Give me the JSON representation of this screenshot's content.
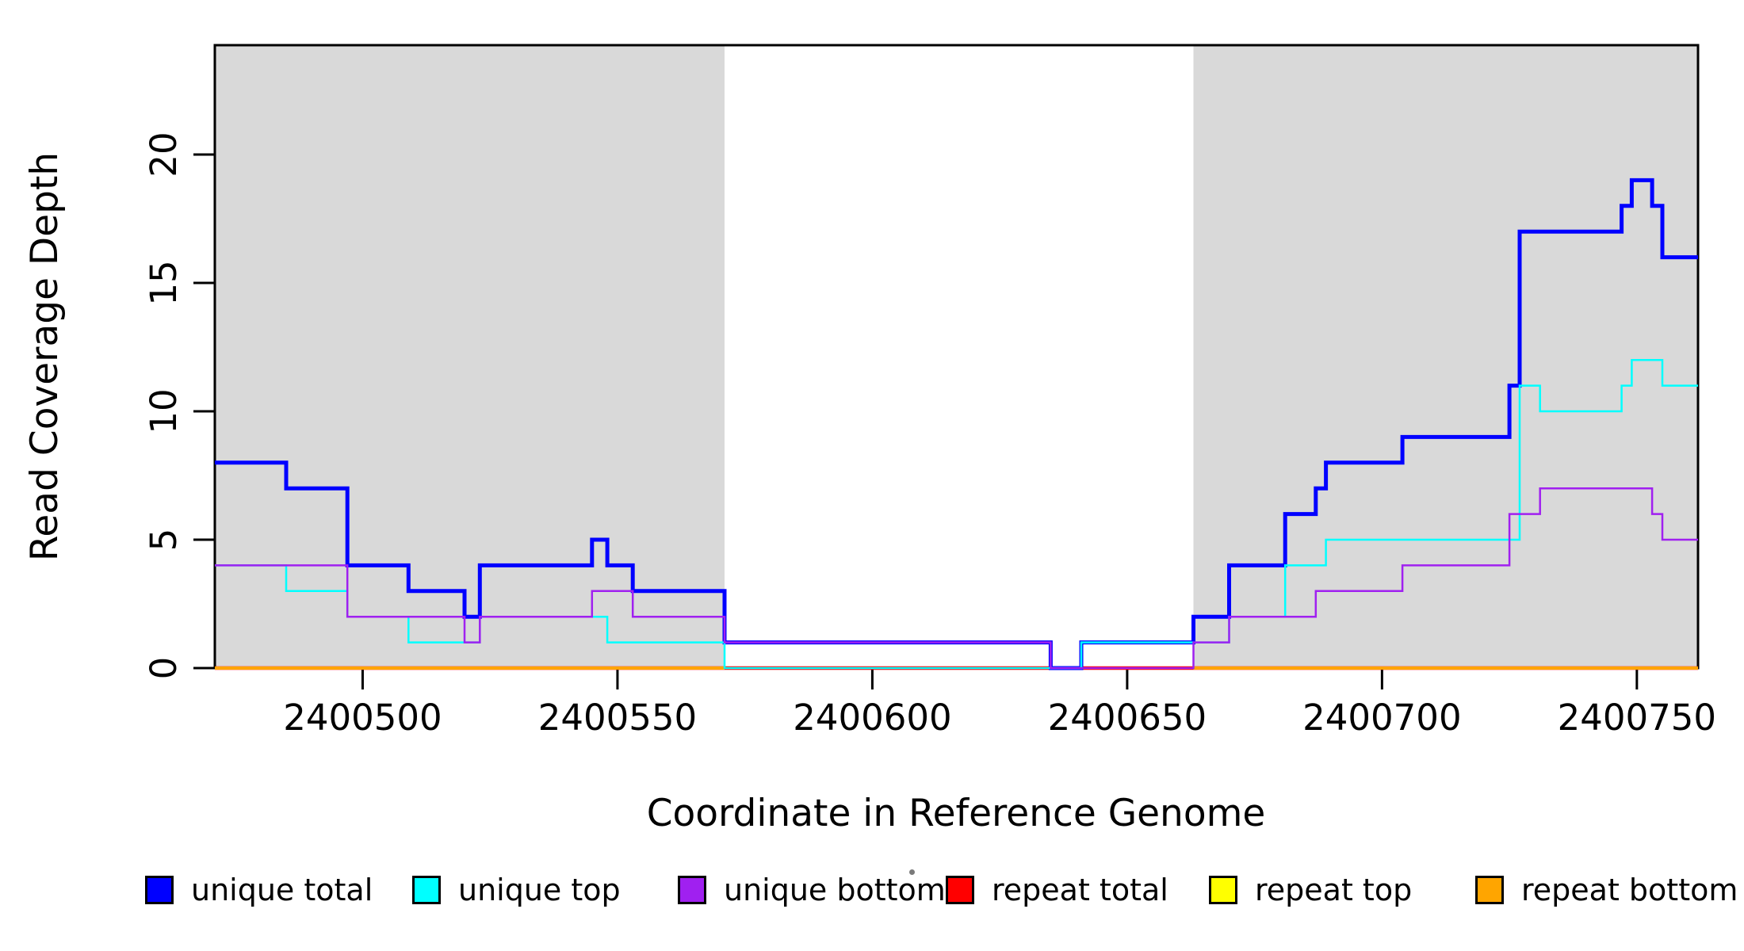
{
  "chart_data": {
    "type": "line",
    "subtype": "step-coverage-plot",
    "title": "",
    "xlabel": "Coordinate in Reference Genome",
    "ylabel": "Read Coverage Depth",
    "xlim": [
      2400471,
      2400762
    ],
    "ylim": [
      0,
      24.26
    ],
    "x_ticks": [
      2400500,
      2400550,
      2400600,
      2400650,
      2400700,
      2400750
    ],
    "y_ticks": [
      0,
      5,
      10,
      15,
      20
    ],
    "grid": false,
    "legend_position": "bottom",
    "background_shading": {
      "color": "#D9D9D9",
      "regions": [
        [
          2400471,
          2400571
        ],
        [
          2400663,
          2400762
        ]
      ]
    },
    "series": [
      {
        "name": "repeat top",
        "color": "#FFFF00",
        "width": 4,
        "parts": [
          [
            [
              2400471,
              2400762,
              0
            ]
          ]
        ]
      },
      {
        "name": "repeat total",
        "color": "#FF0000",
        "width": 4.5,
        "parts": [
          [
            [
              2400471,
              2400762,
              0
            ]
          ]
        ]
      },
      {
        "name": "repeat bottom",
        "color": "#FFA500",
        "width": 4,
        "parts": [
          [
            [
              2400471,
              2400571,
              0
            ]
          ],
          [
            [
              2400663,
              2400762,
              0
            ]
          ]
        ]
      },
      {
        "name": "unique total",
        "color": "#0000FF",
        "width": 5,
        "parts": [
          [
            [
              2400471,
              2400485,
              8
            ],
            [
              2400485,
              2400497,
              7
            ],
            [
              2400497,
              2400509,
              4
            ],
            [
              2400509,
              2400520,
              3
            ],
            [
              2400520,
              2400523,
              2
            ],
            [
              2400523,
              2400545,
              4
            ],
            [
              2400545,
              2400548,
              5
            ],
            [
              2400548,
              2400553,
              4
            ],
            [
              2400553,
              2400571,
              3
            ],
            [
              2400571,
              2400635,
              1
            ],
            [
              2400635,
              2400641,
              0
            ],
            [
              2400641,
              2400663,
              1
            ],
            [
              2400663,
              2400670,
              2
            ],
            [
              2400670,
              2400681,
              4
            ],
            [
              2400681,
              2400687,
              6
            ],
            [
              2400687,
              2400689,
              7
            ],
            [
              2400689,
              2400704,
              8
            ],
            [
              2400704,
              2400725,
              9
            ],
            [
              2400725,
              2400727,
              11
            ],
            [
              2400727,
              2400747,
              17
            ],
            [
              2400747,
              2400749,
              18
            ],
            [
              2400749,
              2400753,
              19
            ],
            [
              2400753,
              2400755,
              18
            ],
            [
              2400755,
              2400762,
              16
            ]
          ]
        ]
      },
      {
        "name": "unique top",
        "color": "#00FFFF",
        "width": 2.5,
        "parts": [
          [
            [
              2400471,
              2400485,
              4
            ],
            [
              2400485,
              2400497,
              3
            ],
            [
              2400497,
              2400509,
              2
            ],
            [
              2400509,
              2400523,
              1
            ],
            [
              2400523,
              2400548,
              2
            ],
            [
              2400548,
              2400571,
              1
            ],
            [
              2400571,
              2400641,
              0
            ],
            [
              2400641,
              2400670,
              1
            ],
            [
              2400670,
              2400681,
              2
            ],
            [
              2400681,
              2400689,
              4
            ],
            [
              2400689,
              2400727,
              5
            ],
            [
              2400727,
              2400731,
              11
            ],
            [
              2400731,
              2400747,
              10
            ],
            [
              2400747,
              2400749,
              11
            ],
            [
              2400749,
              2400755,
              12
            ],
            [
              2400755,
              2400762,
              11
            ]
          ]
        ]
      },
      {
        "name": "unique bottom",
        "color": "#A020F0",
        "width": 2.5,
        "parts": [
          [
            [
              2400471,
              2400497,
              4
            ],
            [
              2400497,
              2400520,
              2
            ],
            [
              2400520,
              2400523,
              1
            ],
            [
              2400523,
              2400545,
              2
            ],
            [
              2400545,
              2400553,
              3
            ],
            [
              2400553,
              2400571,
              2
            ],
            [
              2400571,
              2400635,
              1
            ],
            [
              2400635,
              2400663,
              0
            ],
            [
              2400663,
              2400670,
              1
            ],
            [
              2400670,
              2400687,
              2
            ],
            [
              2400687,
              2400704,
              3
            ],
            [
              2400704,
              2400725,
              4
            ],
            [
              2400725,
              2400731,
              6
            ],
            [
              2400731,
              2400753,
              7
            ],
            [
              2400753,
              2400755,
              6
            ],
            [
              2400755,
              2400762,
              5
            ]
          ]
        ]
      }
    ],
    "legend": [
      {
        "label": "unique total",
        "color": "#0000FF"
      },
      {
        "label": "unique top",
        "color": "#00FFFF"
      },
      {
        "label": "unique bottom",
        "color": "#A020F0"
      },
      {
        "label": "repeat total",
        "color": "#FF0000"
      },
      {
        "label": "repeat top",
        "color": "#FFFF00"
      },
      {
        "label": "repeat bottom",
        "color": "#FFA500"
      }
    ]
  }
}
